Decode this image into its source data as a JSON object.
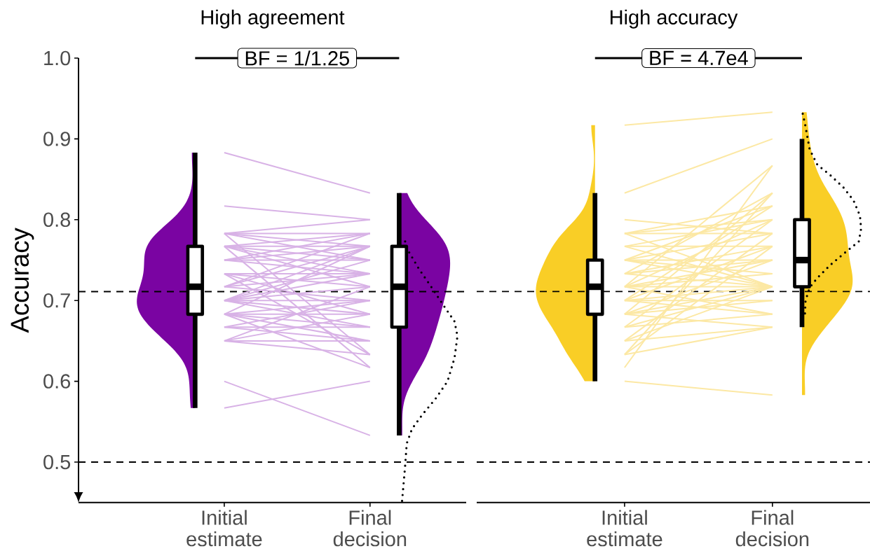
{
  "chart_data": [
    {
      "type": "box",
      "title": "High agreement",
      "ylabel": "Accuracy",
      "categories": [
        "Initial estimate",
        "Final decision"
      ],
      "ylim": [
        0.45,
        1
      ],
      "yticks": [
        0.5,
        0.6,
        0.7,
        0.8,
        0.9,
        {
          "value": 1,
          "label": "1.0"
        }
      ],
      "boxes": [
        {
          "low": 0.567,
          "q1": 0.683,
          "median": 0.717,
          "q3": 0.767,
          "high": 0.883
        },
        {
          "low": 0.533,
          "q1": 0.667,
          "median": 0.717,
          "q3": 0.767,
          "high": 0.833
        }
      ],
      "ref_lines": [
        {
          "axis": "y",
          "value": 0.711,
          "color": "#000000",
          "line_style": "dashed"
        },
        {
          "axis": "y",
          "value": 0.5,
          "color": "#000000",
          "line_style": "dashed"
        }
      ],
      "annotations": [
        "BF = 1/1.25"
      ],
      "series": [
        {
          "type": "line",
          "color": "#d8b2e6",
          "values": [
            0.883,
            0.833
          ]
        },
        {
          "type": "line",
          "color": "#d8b2e6",
          "values": [
            0.817,
            0.8
          ]
        },
        {
          "type": "line",
          "color": "#d8b2e6",
          "values": [
            0.6,
            0.533
          ]
        },
        {
          "type": "line",
          "color": "#d8b2e6",
          "values": [
            0.567,
            0.6
          ]
        },
        {
          "type": "line",
          "color": "#d8b2e6",
          "values": [
            0.783,
            0.783
          ]
        },
        {
          "type": "line",
          "color": "#d8b2e6",
          "values": [
            0.783,
            0.767
          ]
        },
        {
          "type": "line",
          "color": "#d8b2e6",
          "values": [
            0.783,
            0.8
          ]
        },
        {
          "type": "line",
          "color": "#d8b2e6",
          "values": [
            0.783,
            0.75
          ]
        },
        {
          "type": "line",
          "color": "#d8b2e6",
          "values": [
            0.783,
            0.633
          ]
        },
        {
          "type": "line",
          "color": "#d8b2e6",
          "values": [
            0.767,
            0.783
          ]
        },
        {
          "type": "line",
          "color": "#d8b2e6",
          "values": [
            0.767,
            0.767
          ]
        },
        {
          "type": "line",
          "color": "#d8b2e6",
          "values": [
            0.767,
            0.75
          ]
        },
        {
          "type": "line",
          "color": "#d8b2e6",
          "values": [
            0.767,
            0.733
          ]
        },
        {
          "type": "line",
          "color": "#d8b2e6",
          "values": [
            0.767,
            0.717
          ]
        },
        {
          "type": "line",
          "color": "#d8b2e6",
          "values": [
            0.75,
            0.783
          ]
        },
        {
          "type": "line",
          "color": "#d8b2e6",
          "values": [
            0.75,
            0.75
          ]
        },
        {
          "type": "line",
          "color": "#d8b2e6",
          "values": [
            0.75,
            0.767
          ]
        },
        {
          "type": "line",
          "color": "#d8b2e6",
          "values": [
            0.75,
            0.733
          ]
        },
        {
          "type": "line",
          "color": "#d8b2e6",
          "values": [
            0.767,
            0.617
          ]
        },
        {
          "type": "line",
          "color": "#d8b2e6",
          "values": [
            0.733,
            0.733
          ]
        },
        {
          "type": "line",
          "color": "#d8b2e6",
          "values": [
            0.733,
            0.717
          ]
        },
        {
          "type": "line",
          "color": "#d8b2e6",
          "values": [
            0.733,
            0.683
          ]
        },
        {
          "type": "line",
          "color": "#d8b2e6",
          "values": [
            0.733,
            0.633
          ]
        },
        {
          "type": "line",
          "color": "#d8b2e6",
          "values": [
            0.717,
            0.783
          ]
        },
        {
          "type": "line",
          "color": "#d8b2e6",
          "values": [
            0.717,
            0.767
          ]
        },
        {
          "type": "line",
          "color": "#d8b2e6",
          "values": [
            0.717,
            0.733
          ]
        },
        {
          "type": "line",
          "color": "#d8b2e6",
          "values": [
            0.717,
            0.7
          ]
        },
        {
          "type": "line",
          "color": "#d8b2e6",
          "values": [
            0.7,
            0.7
          ]
        },
        {
          "type": "line",
          "color": "#d8b2e6",
          "values": [
            0.7,
            0.683
          ]
        },
        {
          "type": "line",
          "color": "#d8b2e6",
          "values": [
            0.7,
            0.75
          ]
        },
        {
          "type": "line",
          "color": "#d8b2e6",
          "values": [
            0.7,
            0.733
          ]
        },
        {
          "type": "line",
          "color": "#d8b2e6",
          "values": [
            0.7,
            0.717
          ]
        },
        {
          "type": "line",
          "color": "#d8b2e6",
          "values": [
            0.7,
            0.667
          ]
        },
        {
          "type": "line",
          "color": "#d8b2e6",
          "values": [
            0.7,
            0.767
          ]
        },
        {
          "type": "line",
          "color": "#d8b2e6",
          "values": [
            0.683,
            0.683
          ]
        },
        {
          "type": "line",
          "color": "#d8b2e6",
          "values": [
            0.683,
            0.767
          ]
        },
        {
          "type": "line",
          "color": "#d8b2e6",
          "values": [
            0.683,
            0.667
          ]
        },
        {
          "type": "line",
          "color": "#d8b2e6",
          "values": [
            0.683,
            0.65
          ]
        },
        {
          "type": "line",
          "color": "#d8b2e6",
          "values": [
            0.683,
            0.7
          ]
        },
        {
          "type": "line",
          "color": "#d8b2e6",
          "values": [
            0.683,
            0.617
          ]
        },
        {
          "type": "line",
          "color": "#d8b2e6",
          "values": [
            0.667,
            0.667
          ]
        },
        {
          "type": "line",
          "color": "#d8b2e6",
          "values": [
            0.667,
            0.65
          ]
        },
        {
          "type": "line",
          "color": "#d8b2e6",
          "values": [
            0.667,
            0.7
          ]
        },
        {
          "type": "line",
          "color": "#d8b2e6",
          "values": [
            0.65,
            0.65
          ]
        },
        {
          "type": "line",
          "color": "#d8b2e6",
          "values": [
            0.65,
            0.633
          ]
        },
        {
          "type": "line",
          "color": "#d8b2e6",
          "values": [
            0.65,
            0.683
          ]
        },
        {
          "type": "line",
          "color": "#d8b2e6",
          "values": [
            0.65,
            0.717
          ]
        }
      ]
    },
    {
      "type": "box",
      "title": "High accuracy",
      "categories": [
        "Initial estimate",
        "Final decision"
      ],
      "tick_labels": "x",
      "ylim": [
        0.45,
        1
      ],
      "boxes": [
        {
          "low": 0.6,
          "q1": 0.683,
          "median": 0.717,
          "q3": 0.75,
          "high": 0.833
        },
        {
          "low": 0.667,
          "q1": 0.717,
          "median": 0.75,
          "q3": 0.8,
          "high": 0.9
        }
      ],
      "ref_lines": [
        {
          "axis": "y",
          "value": 0.711,
          "color": "#000000",
          "line_style": "dashed"
        },
        {
          "axis": "y",
          "value": 0.5,
          "color": "#000000",
          "line_style": "dashed"
        }
      ],
      "annotations": [
        "BF = 4.7e4"
      ],
      "series": [
        {
          "type": "line",
          "color": "#fce8a4",
          "values": [
            0.917,
            0.933
          ]
        },
        {
          "type": "line",
          "color": "#fce8a4",
          "values": [
            0.833,
            0.9
          ]
        },
        {
          "type": "line",
          "color": "#fce8a4",
          "values": [
            0.6,
            0.583
          ]
        },
        {
          "type": "line",
          "color": "#fce8a4",
          "values": [
            0.8,
            0.783
          ]
        },
        {
          "type": "line",
          "color": "#fce8a4",
          "values": [
            0.783,
            0.817
          ]
        },
        {
          "type": "line",
          "color": "#fce8a4",
          "values": [
            0.783,
            0.8
          ]
        },
        {
          "type": "line",
          "color": "#fce8a4",
          "values": [
            0.783,
            0.783
          ]
        },
        {
          "type": "line",
          "color": "#fce8a4",
          "values": [
            0.783,
            0.717
          ]
        },
        {
          "type": "line",
          "color": "#fce8a4",
          "values": [
            0.767,
            0.8
          ]
        },
        {
          "type": "line",
          "color": "#fce8a4",
          "values": [
            0.767,
            0.767
          ]
        },
        {
          "type": "line",
          "color": "#fce8a4",
          "values": [
            0.767,
            0.717
          ]
        },
        {
          "type": "line",
          "color": "#fce8a4",
          "values": [
            0.7,
            0.7
          ]
        },
        {
          "type": "line",
          "color": "#fce8a4",
          "values": [
            0.75,
            0.75
          ]
        },
        {
          "type": "line",
          "color": "#fce8a4",
          "values": [
            0.75,
            0.783
          ]
        },
        {
          "type": "line",
          "color": "#fce8a4",
          "values": [
            0.75,
            0.817
          ]
        },
        {
          "type": "line",
          "color": "#fce8a4",
          "values": [
            0.75,
            0.733
          ]
        },
        {
          "type": "line",
          "color": "#fce8a4",
          "values": [
            0.75,
            0.717
          ]
        },
        {
          "type": "line",
          "color": "#fce8a4",
          "values": [
            0.733,
            0.767
          ]
        },
        {
          "type": "line",
          "color": "#fce8a4",
          "values": [
            0.733,
            0.75
          ]
        },
        {
          "type": "line",
          "color": "#fce8a4",
          "values": [
            0.733,
            0.717
          ]
        },
        {
          "type": "line",
          "color": "#fce8a4",
          "values": [
            0.733,
            0.833
          ]
        },
        {
          "type": "line",
          "color": "#fce8a4",
          "values": [
            0.717,
            0.717
          ]
        },
        {
          "type": "line",
          "color": "#fce8a4",
          "values": [
            0.717,
            0.75
          ]
        },
        {
          "type": "line",
          "color": "#fce8a4",
          "values": [
            0.717,
            0.8
          ]
        },
        {
          "type": "line",
          "color": "#fce8a4",
          "values": [
            0.717,
            0.867
          ]
        },
        {
          "type": "line",
          "color": "#fce8a4",
          "values": [
            0.717,
            0.733
          ]
        },
        {
          "type": "line",
          "color": "#fce8a4",
          "values": [
            0.717,
            0.683
          ]
        },
        {
          "type": "line",
          "color": "#fce8a4",
          "values": [
            0.7,
            0.717
          ]
        },
        {
          "type": "line",
          "color": "#fce8a4",
          "values": [
            0.7,
            0.767
          ]
        },
        {
          "type": "line",
          "color": "#fce8a4",
          "values": [
            0.7,
            0.683
          ]
        },
        {
          "type": "line",
          "color": "#fce8a4",
          "values": [
            0.7,
            0.817
          ]
        },
        {
          "type": "line",
          "color": "#fce8a4",
          "values": [
            0.683,
            0.833
          ]
        },
        {
          "type": "line",
          "color": "#fce8a4",
          "values": [
            0.683,
            0.75
          ]
        },
        {
          "type": "line",
          "color": "#fce8a4",
          "values": [
            0.683,
            0.7
          ]
        },
        {
          "type": "line",
          "color": "#fce8a4",
          "values": [
            0.683,
            0.667
          ]
        },
        {
          "type": "line",
          "color": "#fce8a4",
          "values": [
            0.667,
            0.8
          ]
        },
        {
          "type": "line",
          "color": "#fce8a4",
          "values": [
            0.667,
            0.717
          ]
        },
        {
          "type": "line",
          "color": "#fce8a4",
          "values": [
            0.667,
            0.683
          ]
        },
        {
          "type": "line",
          "color": "#fce8a4",
          "values": [
            0.65,
            0.783
          ]
        },
        {
          "type": "line",
          "color": "#fce8a4",
          "values": [
            0.65,
            0.717
          ]
        },
        {
          "type": "line",
          "color": "#fce8a4",
          "values": [
            0.65,
            0.667
          ]
        },
        {
          "type": "line",
          "color": "#fce8a4",
          "values": [
            0.633,
            0.833
          ]
        },
        {
          "type": "line",
          "color": "#fce8a4",
          "values": [
            0.633,
            0.767
          ]
        },
        {
          "type": "line",
          "color": "#fce8a4",
          "values": [
            0.683,
            0.717
          ]
        },
        {
          "type": "line",
          "color": "#fce8a4",
          "values": [
            0.633,
            0.667
          ]
        },
        {
          "type": "line",
          "color": "#fce8a4",
          "values": [
            0.617,
            0.867
          ]
        }
      ]
    }
  ]
}
